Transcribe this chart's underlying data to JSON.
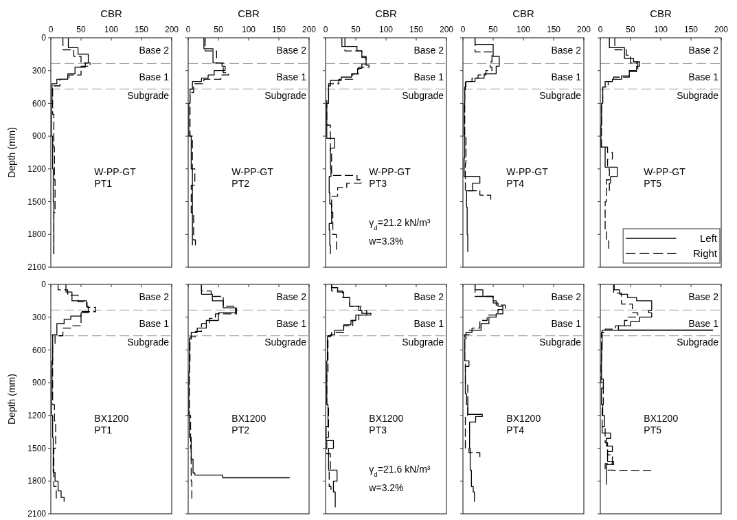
{
  "chart_data": [
    {
      "type": "step",
      "xlabel": "CBR",
      "ylabel": "Depth (mm)",
      "xlim": [
        0,
        200
      ],
      "xticks": [
        0,
        50,
        100,
        150,
        200
      ],
      "ylim": [
        2100,
        0
      ],
      "yticks": [
        0,
        300,
        600,
        900,
        1200,
        1500,
        1800,
        2100
      ],
      "ref_lines": [
        {
          "axis": "y",
          "value": 235,
          "color": "#999999",
          "line_style": "dashed"
        },
        {
          "axis": "y",
          "value": 470,
          "color": "#999999",
          "line_style": "dashed"
        }
      ],
      "annotations": [
        "Base 2",
        "Base 1",
        "Subgrade",
        "W-PP-GT\nPT1"
      ],
      "series": [
        {
          "color": "#000000",
          "line_style": "solid",
          "x": [
            29,
            45,
            62,
            57,
            40,
            28,
            10,
            2,
            1,
            3,
            4,
            5,
            5
          ],
          "values": [
            0,
            90,
            150,
            230,
            270,
            330,
            380,
            420,
            600,
            900,
            1200,
            1500,
            1980
          ]
        },
        {
          "color": "#000000",
          "line_style": "dashed",
          "x": [
            20,
            38,
            50,
            65,
            50,
            30,
            15,
            3,
            5,
            6,
            7,
            5,
            5
          ],
          "values": [
            0,
            110,
            170,
            230,
            260,
            340,
            380,
            440,
            700,
            1000,
            1300,
            1600,
            1980
          ]
        }
      ]
    },
    {
      "type": "step",
      "xlabel": "CBR",
      "xlim": [
        0,
        200
      ],
      "xticks": [
        0,
        50,
        100,
        150,
        200
      ],
      "ylim": [
        2100,
        0
      ],
      "yticks": [
        0,
        300,
        600,
        900,
        1200,
        1500,
        1800,
        2100
      ],
      "tick_labels": "x",
      "ref_lines": [
        {
          "axis": "y",
          "value": 235,
          "color": "#999999",
          "line_style": "dashed"
        },
        {
          "axis": "y",
          "value": 470,
          "color": "#999999",
          "line_style": "dashed"
        }
      ],
      "annotations": [
        "Base 2",
        "Base 1",
        "Subgrade",
        "W-PP-GT\nPT2"
      ],
      "series": [
        {
          "color": "#000000",
          "line_style": "solid",
          "x": [
            26,
            41,
            56,
            61,
            43,
            33,
            22,
            7,
            3,
            1,
            5,
            7,
            7
          ],
          "values": [
            0,
            100,
            230,
            260,
            300,
            340,
            370,
            400,
            470,
            600,
            900,
            1200,
            1900
          ]
        },
        {
          "color": "#000000",
          "line_style": "dashed",
          "x": [
            28,
            47,
            58,
            67,
            54,
            26,
            9,
            3,
            7,
            11,
            5,
            9,
            12,
            12
          ],
          "values": [
            0,
            120,
            230,
            320,
            340,
            380,
            420,
            500,
            900,
            1200,
            1350,
            1600,
            1850,
            1900
          ]
        }
      ]
    },
    {
      "type": "step",
      "xlabel": "CBR",
      "xlim": [
        0,
        200
      ],
      "xticks": [
        0,
        50,
        100,
        150,
        200
      ],
      "ylim": [
        2100,
        0
      ],
      "yticks": [
        0,
        300,
        600,
        900,
        1200,
        1500,
        1800,
        2100
      ],
      "tick_labels": "x",
      "ref_lines": [
        {
          "axis": "y",
          "value": 235,
          "color": "#999999",
          "line_style": "dashed"
        },
        {
          "axis": "y",
          "value": 470,
          "color": "#999999",
          "line_style": "dashed"
        }
      ],
      "annotations": [
        "Base 2",
        "Base 1",
        "Subgrade",
        "W-PP-GT\nPT3",
        "γ$_{d}$=21.2 kN/m³",
        "w=3.3%"
      ],
      "series": [
        {
          "color": "#000000",
          "line_style": "solid",
          "x": [
            27,
            52,
            60,
            67,
            60,
            53,
            43,
            26,
            8,
            5,
            2,
            15,
            8,
            9,
            6,
            7,
            10,
            6,
            7,
            8,
            8
          ],
          "values": [
            0,
            80,
            120,
            180,
            240,
            280,
            330,
            360,
            390,
            440,
            600,
            920,
            1010,
            1200,
            1270,
            1420,
            1520,
            1700,
            1760,
            1900,
            1980
          ]
        },
        {
          "color": "#000000",
          "line_style": "dashed",
          "x": [
            32,
            60,
            67,
            72,
            55,
            45,
            22,
            5,
            2,
            8,
            10,
            52,
            59,
            35,
            20,
            10,
            12,
            18,
            18
          ],
          "values": [
            0,
            120,
            170,
            250,
            270,
            330,
            380,
            420,
            550,
            800,
            1050,
            1260,
            1300,
            1330,
            1370,
            1450,
            1600,
            1800,
            1940
          ]
        }
      ]
    },
    {
      "type": "step",
      "xlabel": "CBR",
      "xlim": [
        0,
        200
      ],
      "xticks": [
        0,
        50,
        100,
        150,
        200
      ],
      "ylim": [
        2100,
        0
      ],
      "yticks": [
        0,
        300,
        600,
        900,
        1200,
        1500,
        1800,
        2100
      ],
      "tick_labels": "x",
      "ref_lines": [
        {
          "axis": "y",
          "value": 235,
          "color": "#999999",
          "line_style": "dashed"
        },
        {
          "axis": "y",
          "value": 470,
          "color": "#999999",
          "line_style": "dashed"
        }
      ],
      "annotations": [
        "Base 2",
        "Base 1",
        "Subgrade",
        "W-PP-GT\nPT4"
      ],
      "series": [
        {
          "color": "#000000",
          "line_style": "solid",
          "x": [
            20,
            50,
            60,
            55,
            35,
            20,
            5,
            3,
            2,
            3,
            2,
            28,
            16,
            6,
            7,
            8,
            8
          ],
          "values": [
            0,
            60,
            170,
            260,
            330,
            370,
            400,
            450,
            600,
            900,
            1100,
            1270,
            1330,
            1400,
            1550,
            1800,
            1960
          ]
        },
        {
          "color": "#000000",
          "line_style": "dashed",
          "x": [
            20,
            48,
            45,
            48,
            38,
            25,
            15,
            4,
            3,
            5,
            4,
            28,
            46,
            46
          ],
          "values": [
            0,
            130,
            220,
            270,
            300,
            340,
            370,
            400,
            500,
            900,
            1150,
            1400,
            1440,
            1480
          ]
        }
      ]
    },
    {
      "type": "step",
      "xlabel": "CBR",
      "xlim": [
        0,
        200
      ],
      "xticks": [
        0,
        50,
        100,
        150,
        200
      ],
      "ylim": [
        2100,
        0
      ],
      "yticks": [
        0,
        300,
        600,
        900,
        1200,
        1500,
        1800,
        2100
      ],
      "tick_labels": "x",
      "legend": "bottom right",
      "ref_lines": [
        {
          "axis": "y",
          "value": 235,
          "color": "#999999",
          "line_style": "dashed"
        },
        {
          "axis": "y",
          "value": 470,
          "color": "#999999",
          "line_style": "dashed"
        }
      ],
      "annotations": [
        "Base 2",
        "Base 1",
        "Subgrade",
        "W-PP-GT\nPT5"
      ],
      "series": [
        {
          "name": "Left",
          "color": "#000000",
          "line_style": "solid",
          "x": [
            15,
            40,
            55,
            65,
            60,
            48,
            35,
            20,
            8,
            4,
            2,
            1,
            8,
            28,
            17,
            15,
            15
          ],
          "values": [
            0,
            90,
            190,
            220,
            260,
            310,
            350,
            380,
            400,
            450,
            600,
            800,
            1000,
            1185,
            1270,
            1330,
            1400
          ]
        },
        {
          "name": "Right",
          "color": "#000000",
          "line_style": "dashed",
          "x": [
            24,
            43,
            50,
            62,
            48,
            22,
            13,
            4,
            2,
            12,
            20,
            12,
            15,
            10,
            8,
            10,
            14,
            14
          ],
          "values": [
            0,
            110,
            160,
            230,
            300,
            360,
            400,
            450,
            600,
            1000,
            1050,
            1110,
            1200,
            1300,
            1500,
            1750,
            1850,
            1930
          ]
        }
      ]
    },
    {
      "type": "step",
      "ylabel": "Depth (mm)",
      "xlim": [
        0,
        200
      ],
      "xticks": [
        0,
        50,
        100,
        150,
        200
      ],
      "ylim": [
        2100,
        0
      ],
      "yticks": [
        0,
        300,
        600,
        900,
        1200,
        1500,
        1800,
        2100
      ],
      "tick_labels": "y",
      "ref_lines": [
        {
          "axis": "y",
          "value": 235,
          "color": "#999999",
          "line_style": "dashed"
        },
        {
          "axis": "y",
          "value": 470,
          "color": "#999999",
          "line_style": "dashed"
        }
      ],
      "annotations": [
        "Base 2",
        "Base 1",
        "Subgrade",
        "BX1200\nPT1"
      ],
      "series": [
        {
          "color": "#000000",
          "line_style": "solid",
          "x": [
            25,
            35,
            59,
            62,
            50,
            33,
            22,
            10,
            3,
            2,
            1,
            3,
            4,
            7,
            12,
            17,
            22,
            22
          ],
          "values": [
            0,
            70,
            150,
            200,
            260,
            290,
            320,
            360,
            460,
            700,
            1000,
            1200,
            1400,
            1720,
            1800,
            1890,
            1950,
            1990
          ]
        },
        {
          "color": "#000000",
          "line_style": "dashed",
          "x": [
            12,
            28,
            45,
            60,
            74,
            50,
            35,
            20,
            7,
            3,
            6,
            8,
            5,
            9,
            9
          ],
          "values": [
            0,
            50,
            100,
            160,
            210,
            250,
            380,
            400,
            470,
            550,
            1100,
            1250,
            1500,
            1850,
            1960
          ]
        }
      ]
    },
    {
      "type": "step",
      "xlim": [
        0,
        200
      ],
      "xticks": [
        0,
        50,
        100,
        150,
        200
      ],
      "ylim": [
        2100,
        0
      ],
      "yticks": [
        0,
        300,
        600,
        900,
        1200,
        1500,
        1800,
        2100
      ],
      "tick_labels": false,
      "ref_lines": [
        {
          "axis": "y",
          "value": 235,
          "color": "#999999",
          "line_style": "dashed"
        },
        {
          "axis": "y",
          "value": 470,
          "color": "#999999",
          "line_style": "dashed"
        }
      ],
      "annotations": [
        "Base 2",
        "Base 1",
        "Subgrade",
        "BX1200\nPT2"
      ],
      "series": [
        {
          "color": "#000000",
          "line_style": "solid",
          "x": [
            22,
            40,
            58,
            78,
            50,
            30,
            15,
            5,
            2,
            1,
            2,
            5,
            8,
            11,
            57,
            168
          ],
          "values": [
            0,
            90,
            150,
            215,
            260,
            330,
            400,
            440,
            500,
            800,
            1200,
            1400,
            1600,
            1726,
            1745,
            1770
          ]
        },
        {
          "color": "#000000",
          "line_style": "dashed",
          "x": [
            22,
            38,
            58,
            75,
            80,
            45,
            35,
            22,
            12,
            3,
            2,
            4,
            5,
            6,
            6
          ],
          "values": [
            0,
            60,
            110,
            200,
            215,
            270,
            310,
            360,
            430,
            480,
            700,
            1200,
            1500,
            1800,
            1960
          ]
        }
      ]
    },
    {
      "type": "step",
      "xlim": [
        0,
        200
      ],
      "xticks": [
        0,
        50,
        100,
        150,
        200
      ],
      "ylim": [
        2100,
        0
      ],
      "yticks": [
        0,
        300,
        600,
        900,
        1200,
        1500,
        1800,
        2100
      ],
      "tick_labels": false,
      "ref_lines": [
        {
          "axis": "y",
          "value": 235,
          "color": "#999999",
          "line_style": "dashed"
        },
        {
          "axis": "y",
          "value": 470,
          "color": "#999999",
          "line_style": "dashed"
        }
      ],
      "annotations": [
        "Base 2",
        "Base 1",
        "Subgrade",
        "BX1200\nPT3",
        "γ$_{d}$=21.6 kN/m³",
        "w=3.2%"
      ],
      "series": [
        {
          "color": "#000000",
          "line_style": "solid",
          "x": [
            10,
            20,
            30,
            40,
            55,
            60,
            75,
            50,
            42,
            30,
            15,
            8,
            3,
            2,
            4,
            1,
            13,
            5,
            19,
            13,
            16,
            16
          ],
          "values": [
            0,
            30,
            70,
            120,
            200,
            240,
            265,
            280,
            330,
            370,
            420,
            460,
            480,
            700,
            1100,
            1300,
            1430,
            1500,
            1700,
            1800,
            1900,
            2040
          ]
        },
        {
          "color": "#000000",
          "line_style": "dashed",
          "x": [
            10,
            28,
            40,
            58,
            68,
            55,
            45,
            30,
            10,
            4,
            2,
            5,
            2,
            8,
            6,
            9,
            9
          ],
          "values": [
            0,
            60,
            120,
            200,
            240,
            280,
            330,
            380,
            440,
            470,
            800,
            1100,
            1400,
            1550,
            1700,
            1850,
            1880
          ]
        }
      ]
    },
    {
      "type": "step",
      "xlim": [
        0,
        200
      ],
      "xticks": [
        0,
        50,
        100,
        150,
        200
      ],
      "ylim": [
        2100,
        0
      ],
      "yticks": [
        0,
        300,
        600,
        900,
        1200,
        1500,
        1800,
        2100
      ],
      "tick_labels": false,
      "ref_lines": [
        {
          "axis": "y",
          "value": 235,
          "color": "#999999",
          "line_style": "dashed"
        },
        {
          "axis": "y",
          "value": 470,
          "color": "#999999",
          "line_style": "dashed"
        }
      ],
      "annotations": [
        "Base 2",
        "Base 1",
        "Subgrade",
        "BX1200\nPT4"
      ],
      "series": [
        {
          "color": "#000000",
          "line_style": "solid",
          "x": [
            20,
            33,
            50,
            58,
            66,
            55,
            43,
            30,
            15,
            5,
            3,
            10,
            4,
            6,
            8,
            32,
            21,
            11,
            12,
            14,
            17,
            19,
            19
          ],
          "values": [
            0,
            50,
            110,
            170,
            200,
            270,
            300,
            360,
            420,
            440,
            500,
            700,
            750,
            1000,
            1100,
            1190,
            1210,
            1260,
            1500,
            1700,
            1850,
            1900,
            1990
          ]
        },
        {
          "color": "#000000",
          "line_style": "dashed",
          "x": [
            20,
            50,
            55,
            70,
            58,
            40,
            28,
            15,
            10,
            3,
            4,
            8,
            4,
            10,
            28,
            28
          ],
          "values": [
            0,
            110,
            150,
            190,
            230,
            280,
            330,
            400,
            420,
            460,
            700,
            900,
            1200,
            1500,
            1540,
            1580
          ]
        }
      ]
    },
    {
      "type": "step",
      "xlim": [
        0,
        200
      ],
      "xticks": [
        0,
        50,
        100,
        150,
        200
      ],
      "ylim": [
        2100,
        0
      ],
      "yticks": [
        0,
        300,
        600,
        900,
        1200,
        1500,
        1800,
        2100
      ],
      "tick_labels": false,
      "ref_lines": [
        {
          "axis": "y",
          "value": 235,
          "color": "#999999",
          "line_style": "dashed"
        },
        {
          "axis": "y",
          "value": 470,
          "color": "#999999",
          "line_style": "dashed"
        }
      ],
      "annotations": [
        "Base 2",
        "Base 1",
        "Subgrade",
        "BX1200\nPT5"
      ],
      "series": [
        {
          "color": "#000000",
          "line_style": "solid",
          "x": [
            23,
            32,
            45,
            60,
            85,
            80,
            85,
            65,
            50,
            30,
            186,
            3,
            2,
            5,
            2,
            4,
            7,
            3,
            17,
            10,
            20,
            12,
            22,
            10,
            10
          ],
          "values": [
            0,
            50,
            90,
            120,
            150,
            240,
            260,
            300,
            340,
            380,
            418,
            420,
            600,
            867,
            950,
            1100,
            1200,
            1300,
            1360,
            1410,
            1480,
            1530,
            1620,
            1650,
            1833
          ]
        },
        {
          "color": "#000000",
          "line_style": "dashed",
          "x": [
            22,
            35,
            53,
            62,
            45,
            40,
            25,
            8,
            2,
            1,
            5,
            3,
            8,
            12,
            20,
            8,
            22,
            84
          ],
          "values": [
            0,
            80,
            180,
            260,
            300,
            330,
            380,
            410,
            440,
            700,
            900,
            1100,
            1300,
            1450,
            1560,
            1640,
            1700,
            1701
          ]
        }
      ]
    }
  ]
}
